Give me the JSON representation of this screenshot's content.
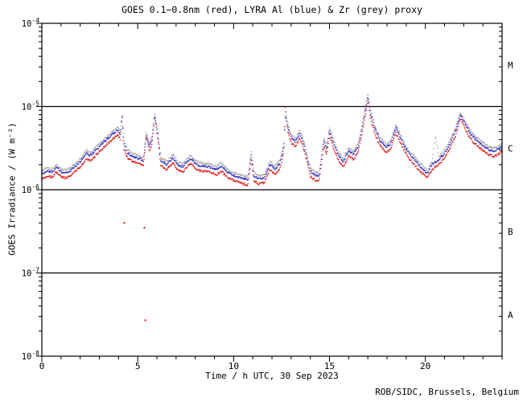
{
  "title": "GOES 0.1−0.8nm (red), LYRA Al (blue) & Zr (grey) proxy",
  "credit": "ROB/SIDC, Brussels, Belgium",
  "axis_tick_labels": {
    "x": [
      "0",
      "5",
      "10",
      "15",
      "20"
    ],
    "y": [
      {
        "base": "10",
        "exp": "-4"
      },
      {
        "base": "10",
        "exp": "-5"
      },
      {
        "base": "10",
        "exp": "-6"
      },
      {
        "base": "10",
        "exp": "-7"
      },
      {
        "base": "10",
        "exp": "-8"
      }
    ]
  },
  "chart_data": {
    "type": "scatter",
    "title": "GOES 0.1−0.8nm (red), LYRA Al (blue) & Zr (grey) proxy",
    "xlabel": "Time / h UTC, 30 Sep 2023",
    "ylabel": "GOES Irradiance / (W m⁻²)",
    "xlim": [
      0,
      24
    ],
    "x_major_ticks": [
      0,
      5,
      10,
      15,
      20
    ],
    "x_minor_step_h": 1,
    "y_scale": "log",
    "ylim": [
      1e-08,
      0.0001
    ],
    "y_log_decades": [
      -4,
      -5,
      -6,
      -7,
      -8
    ],
    "class_lines_exp": [
      -5,
      -6,
      -7
    ],
    "flare_classes": [
      {
        "label": "M",
        "band_exp": [
          -5,
          -4
        ]
      },
      {
        "label": "C",
        "band_exp": [
          -6,
          -5
        ]
      },
      {
        "label": "B",
        "band_exp": [
          -7,
          -6
        ]
      },
      {
        "label": "A",
        "band_exp": [
          -8,
          -7
        ]
      }
    ],
    "grid": false,
    "legend": "encoded in title (red / blue / grey)",
    "values_unit": "1e-6 W m^-2",
    "series": [
      {
        "name": "GOES 0.1−0.8nm",
        "color": "#e81010",
        "points": [
          [
            0,
            1.36
          ],
          [
            0.3,
            1.48
          ],
          [
            0.55,
            1.4
          ],
          [
            0.75,
            1.64
          ],
          [
            1,
            1.42
          ],
          [
            1.25,
            1.38
          ],
          [
            1.5,
            1.48
          ],
          [
            2,
            1.88
          ],
          [
            2.35,
            2.4
          ],
          [
            2.5,
            2.2
          ],
          [
            3,
            2.88
          ],
          [
            3.5,
            3.68
          ],
          [
            3.95,
            4.56
          ],
          [
            4.1,
            4
          ],
          [
            4.18,
            8.2
          ],
          [
            4.28,
            3.12
          ],
          [
            4.45,
            2.44
          ],
          [
            4.7,
            2.2
          ],
          [
            5,
            2.08
          ],
          [
            5.3,
            1.96
          ],
          [
            5.45,
            4.5
          ],
          [
            5.6,
            2.88
          ],
          [
            5.75,
            3.6
          ],
          [
            5.88,
            8
          ],
          [
            6.02,
            4.4
          ],
          [
            6.2,
            1.96
          ],
          [
            6.5,
            1.76
          ],
          [
            6.85,
            2.12
          ],
          [
            7.1,
            1.7
          ],
          [
            7.35,
            1.64
          ],
          [
            7.75,
            2.08
          ],
          [
            8.05,
            1.76
          ],
          [
            8.35,
            1.68
          ],
          [
            8.7,
            1.64
          ],
          [
            9.1,
            1.52
          ],
          [
            9.35,
            1.68
          ],
          [
            9.7,
            1.4
          ],
          [
            10,
            1.3
          ],
          [
            10.4,
            1.2
          ],
          [
            10.75,
            1.14
          ],
          [
            10.92,
            2.32
          ],
          [
            11.05,
            1.3
          ],
          [
            11.3,
            1.17
          ],
          [
            11.6,
            1.22
          ],
          [
            11.9,
            1.76
          ],
          [
            12.15,
            1.54
          ],
          [
            12.4,
            1.8
          ],
          [
            12.62,
            2.8
          ],
          [
            12.7,
            10.5
          ],
          [
            12.82,
            5
          ],
          [
            13,
            3.68
          ],
          [
            13.2,
            3.28
          ],
          [
            13.45,
            4.16
          ],
          [
            13.7,
            2.88
          ],
          [
            14,
            1.46
          ],
          [
            14.2,
            1.32
          ],
          [
            14.45,
            1.26
          ],
          [
            14.7,
            3.36
          ],
          [
            14.85,
            2.64
          ],
          [
            15,
            4.56
          ],
          [
            15.2,
            3.2
          ],
          [
            15.45,
            2.32
          ],
          [
            15.7,
            1.86
          ],
          [
            16,
            2.56
          ],
          [
            16.25,
            2.32
          ],
          [
            16.5,
            2.88
          ],
          [
            16.75,
            5.6
          ],
          [
            17,
            11.4
          ],
          [
            17.15,
            7.2
          ],
          [
            17.35,
            4.8
          ],
          [
            17.6,
            3.52
          ],
          [
            17.95,
            2.8
          ],
          [
            18.2,
            3.12
          ],
          [
            18.45,
            4.88
          ],
          [
            18.7,
            3.68
          ],
          [
            19,
            2.64
          ],
          [
            19.3,
            2.16
          ],
          [
            19.7,
            1.68
          ],
          [
            20.1,
            1.38
          ],
          [
            20.35,
            1.76
          ],
          [
            20.7,
            2
          ],
          [
            21,
            2.4
          ],
          [
            21.3,
            3.2
          ],
          [
            21.6,
            4.64
          ],
          [
            21.82,
            7.3
          ],
          [
            22.05,
            5.5
          ],
          [
            22.3,
            4.24
          ],
          [
            22.6,
            3.52
          ],
          [
            23,
            2.96
          ],
          [
            23.3,
            2.64
          ],
          [
            23.6,
            2.52
          ],
          [
            23.85,
            2.72
          ],
          [
            24,
            2.88
          ]
        ]
      },
      {
        "name": "LYRA Al proxy",
        "color": "#2424c8",
        "points": [
          [
            0,
            1.56
          ],
          [
            0.3,
            1.7
          ],
          [
            0.55,
            1.61
          ],
          [
            0.75,
            1.89
          ],
          [
            1,
            1.64
          ],
          [
            1.25,
            1.58
          ],
          [
            1.5,
            1.7
          ],
          [
            2,
            2.16
          ],
          [
            2.35,
            2.76
          ],
          [
            2.5,
            2.53
          ],
          [
            3,
            3.31
          ],
          [
            3.5,
            4.23
          ],
          [
            3.95,
            5.24
          ],
          [
            4.1,
            4.6
          ],
          [
            4.18,
            7.6
          ],
          [
            4.28,
            3.59
          ],
          [
            4.45,
            2.81
          ],
          [
            4.7,
            2.53
          ],
          [
            5,
            2.39
          ],
          [
            5.3,
            2.25
          ],
          [
            5.45,
            4.6
          ],
          [
            5.6,
            3.31
          ],
          [
            5.75,
            4.14
          ],
          [
            5.88,
            7.9
          ],
          [
            6.02,
            5.06
          ],
          [
            6.2,
            2.25
          ],
          [
            6.5,
            2.02
          ],
          [
            6.85,
            2.44
          ],
          [
            7.1,
            1.95
          ],
          [
            7.35,
            1.89
          ],
          [
            7.75,
            2.39
          ],
          [
            8.05,
            2.02
          ],
          [
            8.35,
            1.93
          ],
          [
            8.7,
            1.89
          ],
          [
            9.1,
            1.75
          ],
          [
            9.35,
            1.93
          ],
          [
            9.7,
            1.61
          ],
          [
            10,
            1.49
          ],
          [
            10.4,
            1.38
          ],
          [
            10.75,
            1.32
          ],
          [
            10.92,
            2.67
          ],
          [
            11.05,
            1.49
          ],
          [
            11.3,
            1.34
          ],
          [
            11.6,
            1.4
          ],
          [
            11.9,
            2.02
          ],
          [
            12.15,
            1.77
          ],
          [
            12.4,
            2.07
          ],
          [
            12.62,
            3.22
          ],
          [
            12.7,
            7.8
          ],
          [
            12.82,
            5.8
          ],
          [
            13,
            4.23
          ],
          [
            13.2,
            3.77
          ],
          [
            13.45,
            4.78
          ],
          [
            13.7,
            3.31
          ],
          [
            14,
            1.67
          ],
          [
            14.2,
            1.52
          ],
          [
            14.45,
            1.44
          ],
          [
            14.7,
            3.86
          ],
          [
            14.85,
            3.04
          ],
          [
            15,
            5.24
          ],
          [
            15.2,
            3.68
          ],
          [
            15.45,
            2.67
          ],
          [
            15.7,
            2.13
          ],
          [
            16,
            2.94
          ],
          [
            16.25,
            2.67
          ],
          [
            16.5,
            3.31
          ],
          [
            16.75,
            6.44
          ],
          [
            17,
            13.4
          ],
          [
            17.15,
            8.28
          ],
          [
            17.35,
            5.52
          ],
          [
            17.6,
            4.05
          ],
          [
            17.95,
            3.22
          ],
          [
            18.2,
            3.59
          ],
          [
            18.45,
            5.61
          ],
          [
            18.7,
            4.23
          ],
          [
            19,
            3.04
          ],
          [
            19.3,
            2.48
          ],
          [
            19.7,
            1.93
          ],
          [
            20.1,
            1.58
          ],
          [
            20.35,
            2.02
          ],
          [
            20.7,
            2.3
          ],
          [
            21,
            2.76
          ],
          [
            21.3,
            3.68
          ],
          [
            21.6,
            5.34
          ],
          [
            21.82,
            7.91
          ],
          [
            22.05,
            6.35
          ],
          [
            22.3,
            4.88
          ],
          [
            22.6,
            4.05
          ],
          [
            23,
            3.4
          ],
          [
            23.3,
            3.04
          ],
          [
            23.6,
            2.9
          ],
          [
            23.85,
            3.13
          ],
          [
            24,
            3.31
          ]
        ]
      },
      {
        "name": "LYRA Zr proxy",
        "color": "#a8a8a8",
        "points": [
          [
            0,
            1.7
          ],
          [
            0.3,
            1.85
          ],
          [
            0.55,
            1.75
          ],
          [
            0.75,
            2.05
          ],
          [
            1,
            1.78
          ],
          [
            1.25,
            1.72
          ],
          [
            1.5,
            1.85
          ],
          [
            2,
            2.35
          ],
          [
            2.35,
            3
          ],
          [
            2.5,
            2.75
          ],
          [
            3,
            3.6
          ],
          [
            3.5,
            4.6
          ],
          [
            3.95,
            5.7
          ],
          [
            4.1,
            5
          ],
          [
            4.18,
            8
          ],
          [
            4.28,
            3.9
          ],
          [
            4.45,
            3.05
          ],
          [
            4.7,
            2.75
          ],
          [
            5,
            2.6
          ],
          [
            5.3,
            2.45
          ],
          [
            5.45,
            5
          ],
          [
            5.6,
            3.6
          ],
          [
            5.75,
            4.5
          ],
          [
            5.88,
            8.3
          ],
          [
            6.02,
            5.5
          ],
          [
            6.2,
            2.45
          ],
          [
            6.5,
            2.2
          ],
          [
            6.85,
            2.65
          ],
          [
            7.1,
            2.12
          ],
          [
            7.35,
            2.05
          ],
          [
            7.75,
            2.6
          ],
          [
            8.05,
            2.2
          ],
          [
            8.35,
            2.1
          ],
          [
            8.7,
            2.05
          ],
          [
            9.1,
            1.9
          ],
          [
            9.35,
            2.1
          ],
          [
            9.7,
            1.75
          ],
          [
            10,
            1.62
          ],
          [
            10.4,
            1.5
          ],
          [
            10.75,
            1.43
          ],
          [
            10.92,
            2.9
          ],
          [
            11.05,
            1.62
          ],
          [
            11.3,
            1.46
          ],
          [
            11.6,
            1.52
          ],
          [
            11.9,
            2.2
          ],
          [
            12.15,
            1.92
          ],
          [
            12.4,
            2.25
          ],
          [
            12.62,
            3.5
          ],
          [
            12.7,
            8
          ],
          [
            12.82,
            6.3
          ],
          [
            13,
            4.6
          ],
          [
            13.2,
            4.1
          ],
          [
            13.45,
            5.2
          ],
          [
            13.7,
            3.6
          ],
          [
            14,
            1.82
          ],
          [
            14.2,
            1.65
          ],
          [
            14.45,
            1.57
          ],
          [
            14.7,
            4.2
          ],
          [
            14.85,
            3.3
          ],
          [
            15,
            5.7
          ],
          [
            15.2,
            4
          ],
          [
            15.45,
            2.9
          ],
          [
            15.7,
            2.32
          ],
          [
            16,
            3.2
          ],
          [
            16.25,
            2.9
          ],
          [
            16.5,
            3.6
          ],
          [
            16.75,
            7
          ],
          [
            17,
            14.5
          ],
          [
            17.15,
            9
          ],
          [
            17.35,
            6
          ],
          [
            17.6,
            4.4
          ],
          [
            17.95,
            3.5
          ],
          [
            18.2,
            3.9
          ],
          [
            18.45,
            6.1
          ],
          [
            18.7,
            4.6
          ],
          [
            19,
            3.3
          ],
          [
            19.3,
            2.7
          ],
          [
            19.7,
            2.1
          ],
          [
            20.1,
            1.72
          ],
          [
            20.35,
            2.2
          ],
          [
            20.52,
            4.6
          ],
          [
            20.7,
            2.5
          ],
          [
            21,
            3
          ],
          [
            21.3,
            4
          ],
          [
            21.6,
            5.8
          ],
          [
            21.82,
            8.6
          ],
          [
            22.05,
            6.9
          ],
          [
            22.3,
            5.3
          ],
          [
            22.6,
            4.4
          ],
          [
            23,
            3.7
          ],
          [
            23.3,
            3.3
          ],
          [
            23.6,
            3.15
          ],
          [
            23.85,
            3.4
          ],
          [
            24,
            3.6
          ]
        ]
      }
    ],
    "dropout_points": [
      {
        "h": 4.3,
        "value": 0.4,
        "color": "#e81010"
      },
      {
        "h": 5.35,
        "value": 0.35,
        "color": "#e81010"
      },
      {
        "h": 5.4,
        "value": 0.027,
        "color": "#e81010"
      }
    ]
  }
}
